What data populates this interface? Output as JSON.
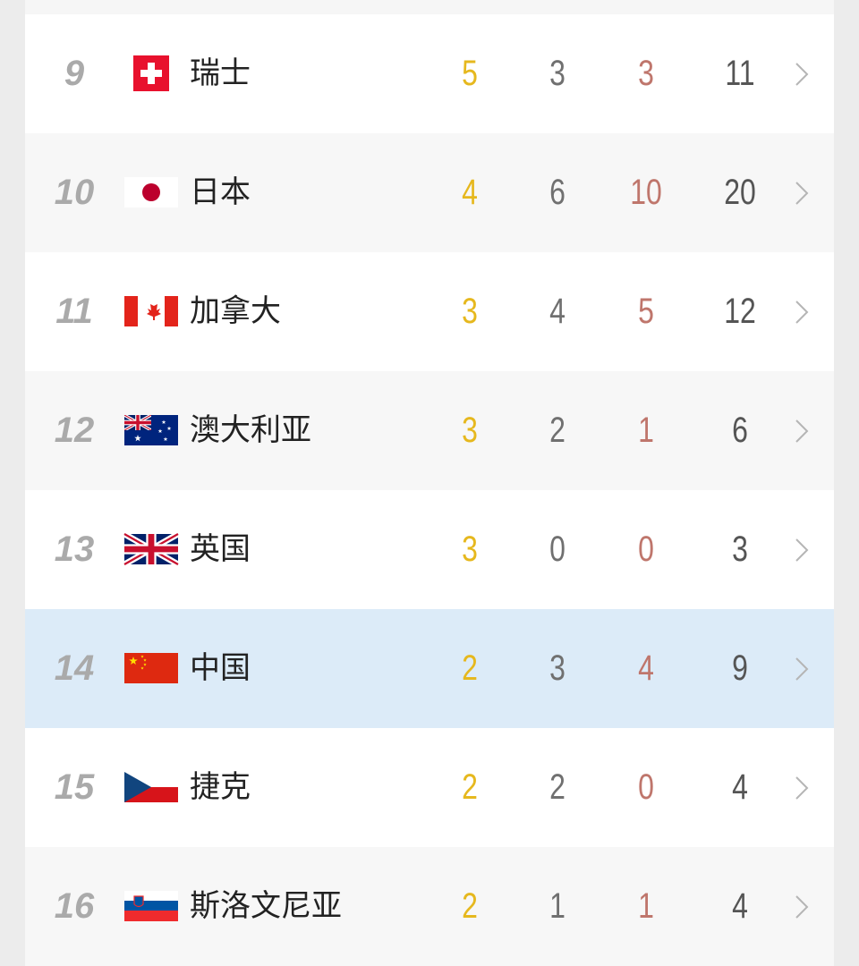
{
  "table": {
    "rows": [
      {
        "rank": 9,
        "country": "瑞士",
        "gold": 5,
        "silver": 3,
        "bronze": 3,
        "total": 11
      },
      {
        "rank": 10,
        "country": "日本",
        "gold": 4,
        "silver": 6,
        "bronze": 10,
        "total": 20
      },
      {
        "rank": 11,
        "country": "加拿大",
        "gold": 3,
        "silver": 4,
        "bronze": 5,
        "total": 12
      },
      {
        "rank": 12,
        "country": "澳大利亚",
        "gold": 3,
        "silver": 2,
        "bronze": 1,
        "total": 6
      },
      {
        "rank": 13,
        "country": "英国",
        "gold": 3,
        "silver": 0,
        "bronze": 0,
        "total": 3
      },
      {
        "rank": 14,
        "country": "中国",
        "gold": 2,
        "silver": 3,
        "bronze": 4,
        "total": 9
      },
      {
        "rank": 15,
        "country": "捷克",
        "gold": 2,
        "silver": 2,
        "bronze": 0,
        "total": 4
      },
      {
        "rank": 16,
        "country": "斯洛文尼亚",
        "gold": 2,
        "silver": 1,
        "bronze": 1,
        "total": 4
      }
    ]
  }
}
